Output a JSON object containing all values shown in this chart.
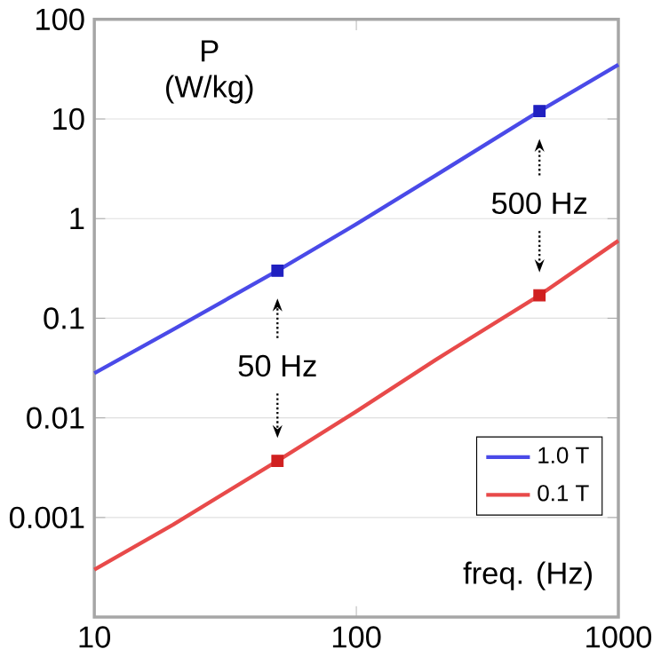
{
  "chart_data": {
    "type": "line",
    "xlabel": "freq. (Hz)",
    "ylabel": "P (W/kg)",
    "log": "xy",
    "xlim": [
      10,
      1000
    ],
    "ylim": [
      0.0001,
      100
    ],
    "xticks": [
      10,
      100,
      1000
    ],
    "yticks": [
      {
        "value": 0.0001,
        "label": null
      },
      0.001,
      0.01,
      0.1,
      1,
      10,
      100
    ],
    "grid": "y",
    "legend": "bottom right",
    "line_style": "solid",
    "series": [
      {
        "name": "1.0 T",
        "color": "#4a4ae8",
        "x": [
          10,
          20,
          50,
          100,
          200,
          500,
          1000
        ],
        "values": [
          0.028,
          0.077,
          0.3,
          0.88,
          2.7,
          12,
          35
        ]
      },
      {
        "name": "0.1 T",
        "color": "#e84a4a",
        "x": [
          10,
          20,
          50,
          100,
          200,
          500,
          1000
        ],
        "values": [
          0.0003,
          0.00085,
          0.0037,
          0.0116,
          0.038,
          0.17,
          0.6
        ]
      },
      {
        "type": "scatter",
        "marker": "square",
        "color": "#2020c0",
        "x": [
          50,
          500
        ],
        "values": [
          0.3,
          12
        ]
      },
      {
        "type": "scatter",
        "marker": "square",
        "color": "#d02020",
        "x": [
          50,
          500
        ],
        "values": [
          0.0037,
          0.17
        ]
      }
    ],
    "annotations": [
      "50 Hz",
      "500 Hz"
    ]
  }
}
